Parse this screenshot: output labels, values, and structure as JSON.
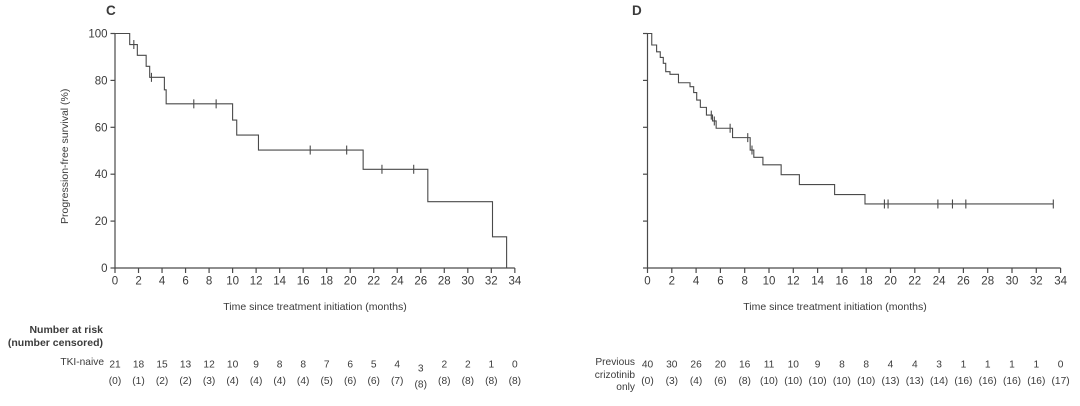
{
  "figure": {
    "background": "#ffffff",
    "text_color": "#3b3b3b",
    "line_color": "#4a4a4a",
    "risk_header": {
      "line1": "Number at risk",
      "line2": "(number censored)"
    }
  },
  "chart_data": [
    {
      "type": "line",
      "subtype": "kaplan-meier-step",
      "panel_label": "C",
      "group_label": "TKI-naive",
      "xlabel": "Time since treatment initiation (months)",
      "ylabel": "Progression-free survival (%)",
      "xlim": [
        0,
        34
      ],
      "ylim": [
        0,
        100
      ],
      "xticks": [
        0,
        2,
        4,
        6,
        8,
        10,
        12,
        14,
        16,
        18,
        20,
        22,
        24,
        26,
        28,
        30,
        32,
        34
      ],
      "yticks": [
        0,
        20,
        40,
        60,
        80,
        100
      ],
      "show_ytick_labels": true,
      "grid": false,
      "km_steps": [
        [
          0,
          100
        ],
        [
          1.25,
          95.3
        ],
        [
          1.9,
          90.7
        ],
        [
          2.65,
          86
        ],
        [
          2.95,
          81.3
        ],
        [
          4.2,
          76
        ],
        [
          4.35,
          70
        ],
        [
          10.0,
          63.1
        ],
        [
          10.35,
          56.7
        ],
        [
          12.2,
          50.3
        ],
        [
          21.1,
          42.1
        ],
        [
          26.6,
          28.3
        ],
        [
          32.1,
          13.3
        ],
        [
          33.3,
          0
        ]
      ],
      "curve_end_x": 33.3,
      "censor_marks": [
        [
          1.6,
          95.3
        ],
        [
          3.1,
          81.3
        ],
        [
          6.7,
          70
        ],
        [
          8.6,
          70
        ],
        [
          16.6,
          50.3
        ],
        [
          19.7,
          50.3
        ],
        [
          22.7,
          42.1
        ],
        [
          25.4,
          42.1
        ]
      ],
      "risk_label_lines": [
        "TKI-naive"
      ],
      "at_risk_times": [
        0,
        2,
        4,
        6,
        8,
        10,
        12,
        14,
        16,
        18,
        20,
        22,
        24,
        26,
        28,
        30,
        32,
        34
      ],
      "at_risk": [
        21,
        18,
        15,
        13,
        12,
        10,
        9,
        8,
        8,
        7,
        6,
        5,
        4,
        3,
        2,
        2,
        1,
        0
      ],
      "censored": [
        "(0)",
        "(1)",
        "(2)",
        "(2)",
        "(3)",
        "(4)",
        "(4)",
        "(4)",
        "(4)",
        "(5)",
        "(6)",
        "(6)",
        "(7)",
        "(8)",
        "(8)",
        "(8)",
        "(8)",
        "(8)"
      ]
    },
    {
      "type": "line",
      "subtype": "kaplan-meier-step",
      "panel_label": "D",
      "group_label": "Previous crizotinib only",
      "xlabel": "Time since treatment initiation (months)",
      "ylabel": "Progression-free survival (%)",
      "xlim": [
        0,
        34
      ],
      "ylim": [
        0,
        100
      ],
      "xticks": [
        0,
        2,
        4,
        6,
        8,
        10,
        12,
        14,
        16,
        18,
        20,
        22,
        24,
        26,
        28,
        30,
        32,
        34
      ],
      "yticks": [
        0,
        20,
        40,
        60,
        80,
        100
      ],
      "show_ytick_labels": false,
      "grid": false,
      "km_steps": [
        [
          0,
          100
        ],
        [
          0.35,
          95.1
        ],
        [
          0.75,
          92.2
        ],
        [
          1.05,
          89.8
        ],
        [
          1.3,
          87.3
        ],
        [
          1.5,
          83.7
        ],
        [
          1.85,
          82.6
        ],
        [
          2.55,
          79.0
        ],
        [
          3.5,
          77.3
        ],
        [
          3.8,
          74.8
        ],
        [
          4.05,
          71.6
        ],
        [
          4.35,
          68.5
        ],
        [
          4.85,
          65.2
        ],
        [
          5.35,
          62.7
        ],
        [
          5.65,
          59.6
        ],
        [
          7.0,
          55.6
        ],
        [
          8.45,
          50.3
        ],
        [
          8.75,
          47.2
        ],
        [
          9.5,
          44.0
        ],
        [
          11.0,
          39.8
        ],
        [
          12.5,
          35.6
        ],
        [
          15.4,
          31.3
        ],
        [
          17.9,
          27.3
        ]
      ],
      "curve_end_x": 33.4,
      "censor_marks": [
        [
          5.25,
          65.2
        ],
        [
          5.5,
          62.7
        ],
        [
          6.8,
          59.6
        ],
        [
          8.25,
          55.6
        ],
        [
          8.6,
          50.3
        ],
        [
          19.5,
          27.3
        ],
        [
          19.8,
          27.3
        ],
        [
          23.9,
          27.3
        ],
        [
          25.1,
          27.3
        ],
        [
          26.2,
          27.3
        ],
        [
          33.4,
          27.3
        ]
      ],
      "risk_label_lines": [
        "Previous",
        "crizotinib",
        "only"
      ],
      "at_risk_times": [
        0,
        2,
        4,
        6,
        8,
        10,
        12,
        14,
        16,
        18,
        20,
        22,
        24,
        26,
        28,
        30,
        32,
        34
      ],
      "at_risk": [
        40,
        30,
        26,
        20,
        16,
        11,
        10,
        9,
        8,
        8,
        4,
        4,
        3,
        1,
        1,
        1,
        1,
        0
      ],
      "censored": [
        "(0)",
        "(3)",
        "(4)",
        "(6)",
        "(8)",
        "(10)",
        "(10)",
        "(10)",
        "(10)",
        "(10)",
        "(13)",
        "(13)",
        "(14)",
        "(16)",
        "(16)",
        "(16)",
        "(16)",
        "(17)"
      ]
    }
  ]
}
